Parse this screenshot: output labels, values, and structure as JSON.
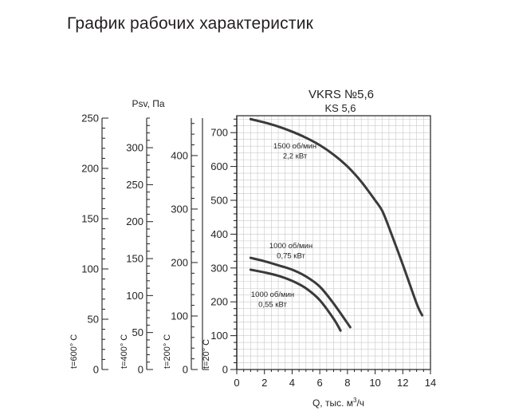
{
  "page": {
    "title": "График рабочих характеристик"
  },
  "chart_data": {
    "type": "line",
    "title": "VKRS №5,6",
    "subtitle": "KS 5,6",
    "xlabel": "Q, тыс. м³/ч",
    "ylabel": "Psv, Па",
    "xlim": [
      0,
      14
    ],
    "ylim": [
      0,
      750
    ],
    "x_ticks": [
      0,
      2,
      4,
      6,
      8,
      10,
      12,
      14
    ],
    "y_ticks": [
      0,
      100,
      200,
      300,
      400,
      500,
      600,
      700
    ],
    "grid": true,
    "series": [
      {
        "name": "1500 об/мин 2,2 кВт",
        "label_lines": [
          "1500 об/мин",
          "2,2 кВт"
        ],
        "x": [
          1.0,
          2.0,
          3.0,
          4.0,
          5.0,
          6.0,
          7.0,
          8.0,
          9.0,
          10.0,
          10.5,
          11.0,
          12.0,
          13.0,
          13.4
        ],
        "y": [
          740,
          730,
          718,
          703,
          685,
          663,
          635,
          600,
          555,
          500,
          470,
          420,
          310,
          195,
          160
        ]
      },
      {
        "name": "1000 об/мин 0,75 кВт",
        "label_lines": [
          "1000 об/мин",
          "0,75 кВт"
        ],
        "x": [
          1.0,
          2.0,
          3.0,
          4.0,
          5.0,
          6.0,
          7.0,
          8.2
        ],
        "y": [
          330,
          320,
          308,
          295,
          275,
          245,
          195,
          125
        ]
      },
      {
        "name": "1000 об/мин 0,55 кВт",
        "label_lines": [
          "1000 об/мин",
          "0,55 кВт"
        ],
        "x": [
          1.0,
          2.0,
          3.0,
          4.0,
          5.0,
          6.0,
          7.0,
          7.5
        ],
        "y": [
          295,
          287,
          277,
          262,
          240,
          205,
          150,
          115
        ]
      }
    ],
    "aux_scales": [
      {
        "name": "t=600° C",
        "ticks": [
          0,
          50,
          100,
          150,
          200,
          250
        ]
      },
      {
        "name": "t=400° C",
        "ticks": [
          0,
          50,
          100,
          150,
          200,
          250,
          300
        ]
      },
      {
        "name": "t=200° C",
        "ticks": [
          0,
          100,
          200,
          300,
          400
        ]
      },
      {
        "name": "t=20° C",
        "ticks": []
      }
    ]
  }
}
